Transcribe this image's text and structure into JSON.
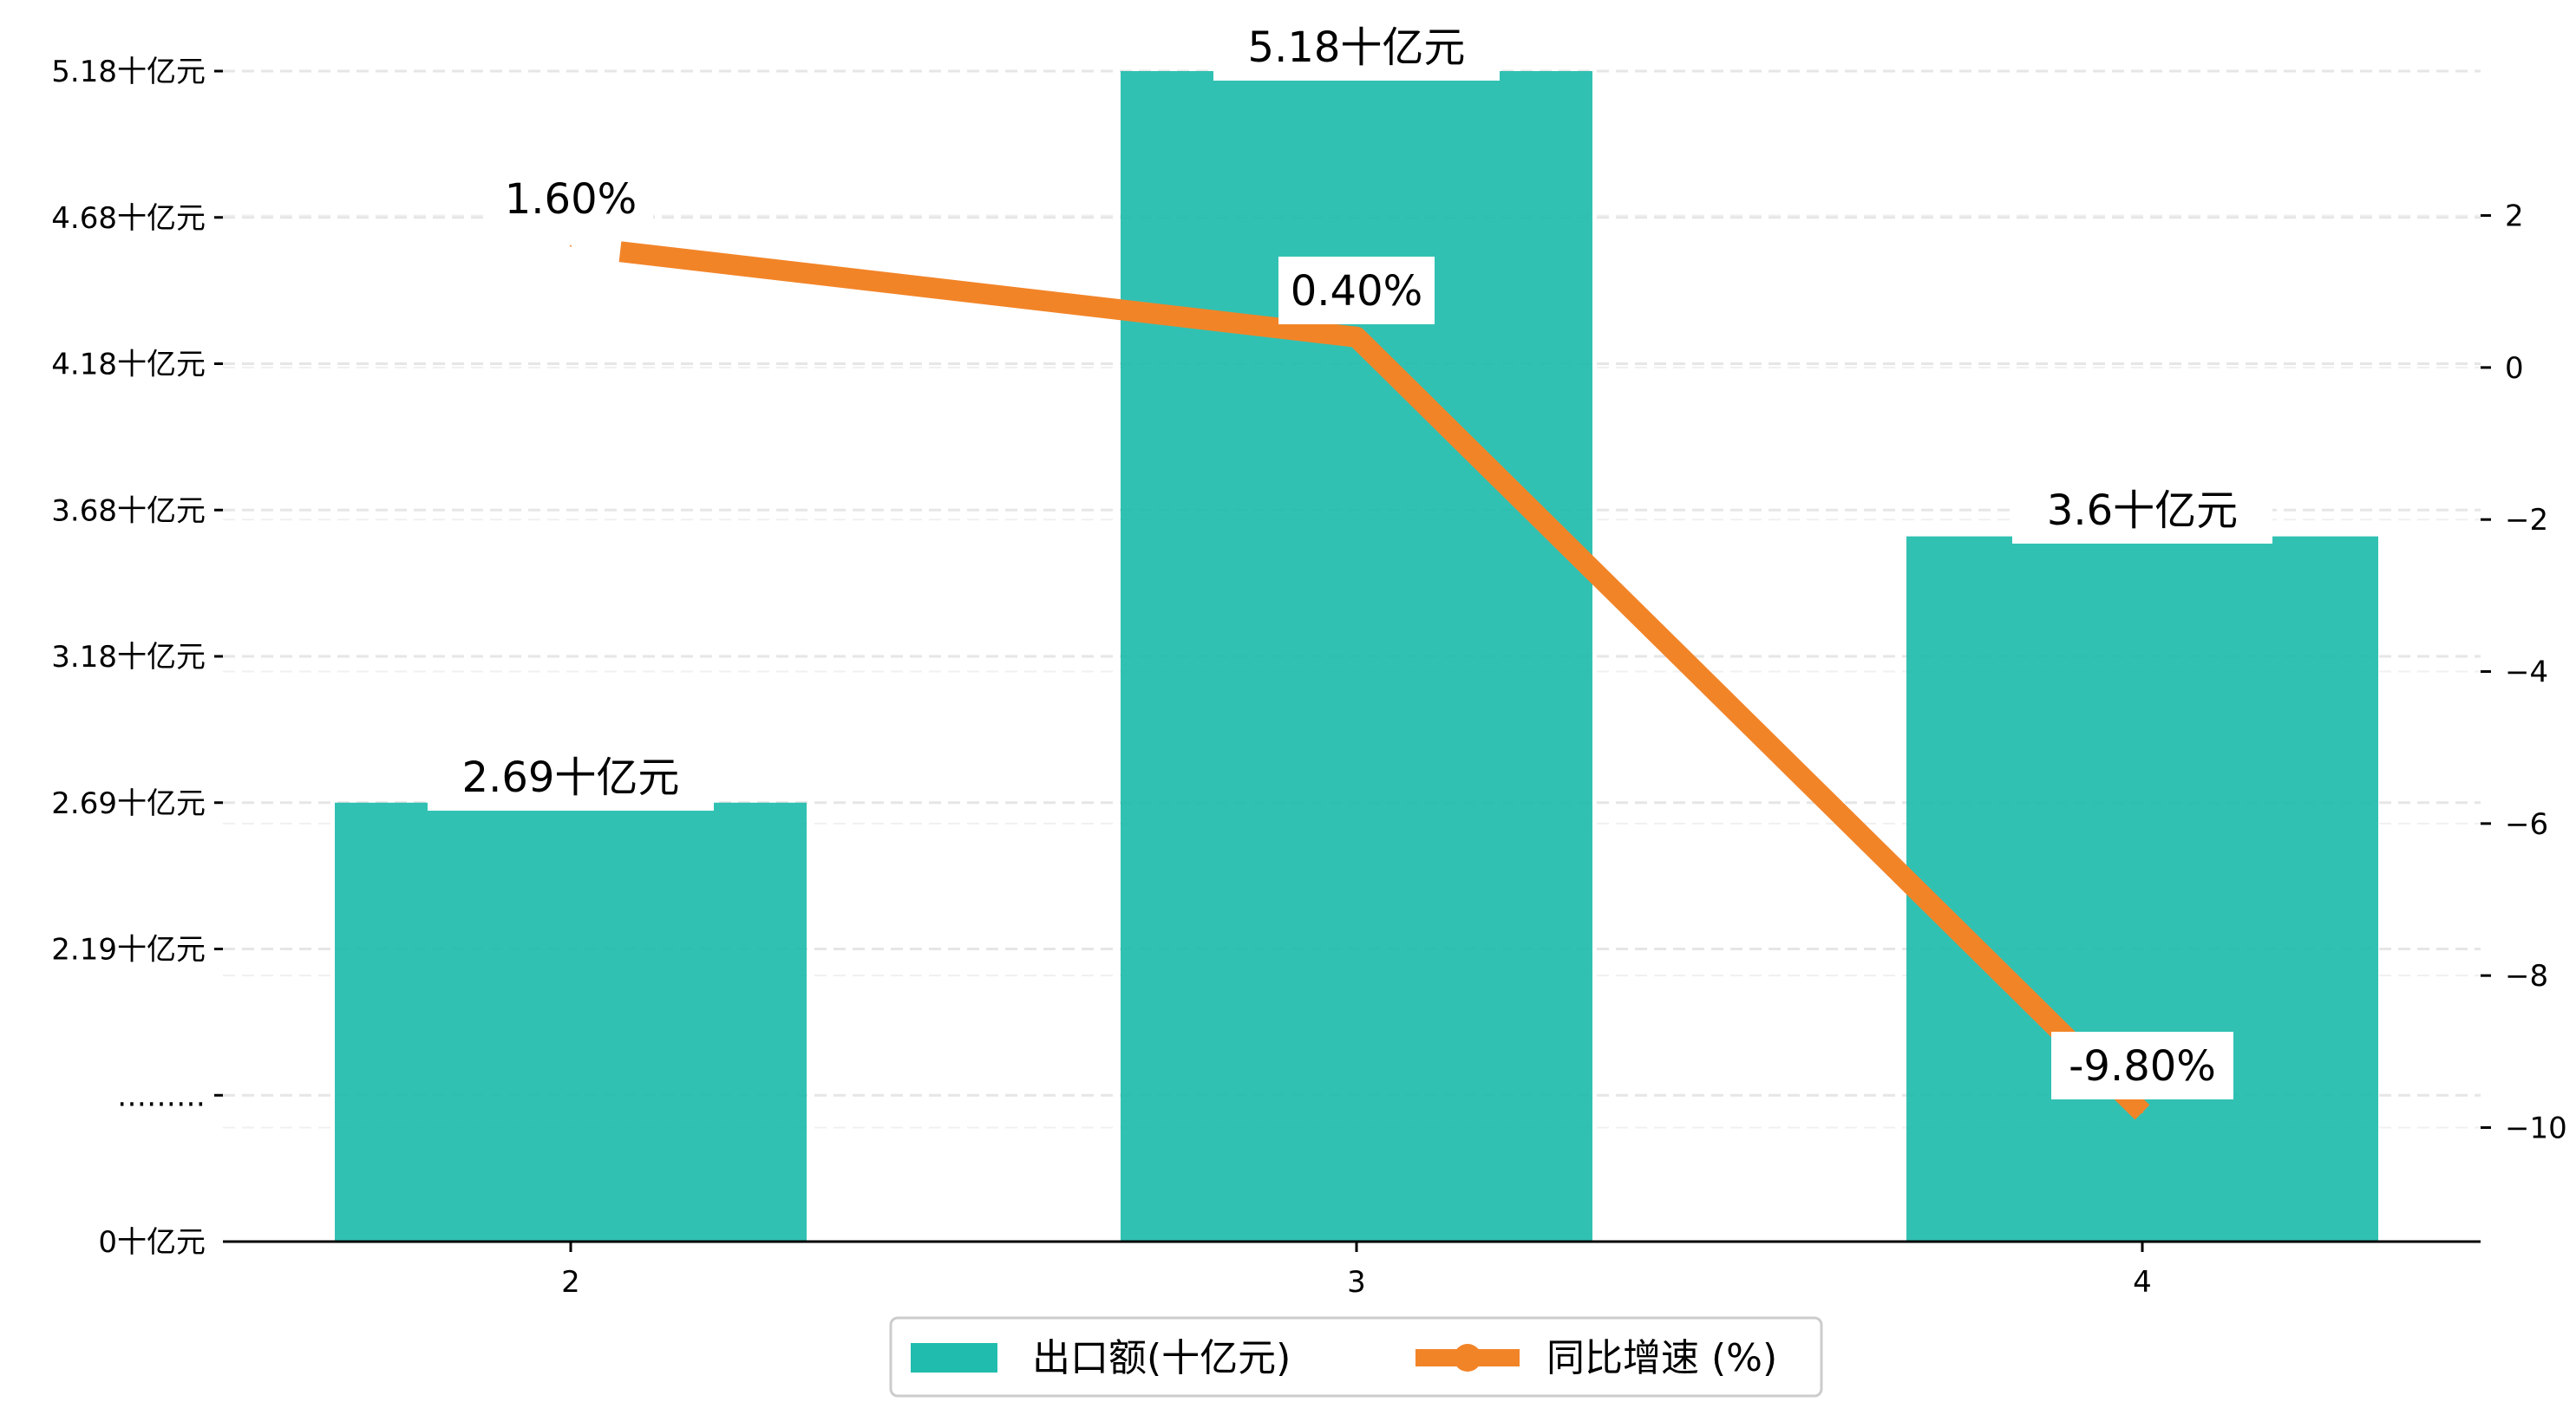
{
  "chart_data": {
    "type": "bar",
    "title": "",
    "xlabel": "",
    "ylabel": "",
    "categories": [
      "2",
      "3",
      "4"
    ],
    "series": [
      {
        "name": "出口额(十亿元)",
        "type": "bar",
        "axis": "left",
        "values": [
          2.69,
          5.18,
          3.6
        ],
        "labels": [
          "2.69十亿元",
          "5.18十亿元",
          "3.6十亿元"
        ],
        "color": "#20bcad"
      },
      {
        "name": "同比增速 (%)",
        "type": "line",
        "axis": "right",
        "values": [
          1.6,
          0.4,
          -9.8
        ],
        "labels": [
          "1.60%",
          "0.40%",
          "-9.80%"
        ],
        "color": "#f28428"
      }
    ],
    "y_left": {
      "ticks": [
        {
          "value": 0,
          "label": "0十亿元"
        },
        {
          "value": 0.5,
          "label": "………"
        },
        {
          "value": 1.0,
          "label": "2.19十亿元"
        },
        {
          "value": 1.5,
          "label": "2.69十亿元"
        },
        {
          "value": 2.0,
          "label": "3.18十亿元"
        },
        {
          "value": 2.5,
          "label": "3.68十亿元"
        },
        {
          "value": 3.0,
          "label": "4.18十亿元"
        },
        {
          "value": 3.5,
          "label": "4.68十亿元"
        },
        {
          "value": 4.0,
          "label": "5.18十亿元"
        }
      ],
      "break_note": "axis is broken between 0 and 2.19"
    },
    "y_right": {
      "ylim": [
        -11.5,
        3.9
      ],
      "ticks": [
        2,
        0,
        -2,
        -4,
        -6,
        -8,
        -10
      ],
      "tick_labels": [
        "2",
        "0",
        "−2",
        "−4",
        "−6",
        "−8",
        "−10"
      ]
    },
    "grid": "horizontal dashed",
    "legend": {
      "placement": "bottom-center"
    }
  }
}
